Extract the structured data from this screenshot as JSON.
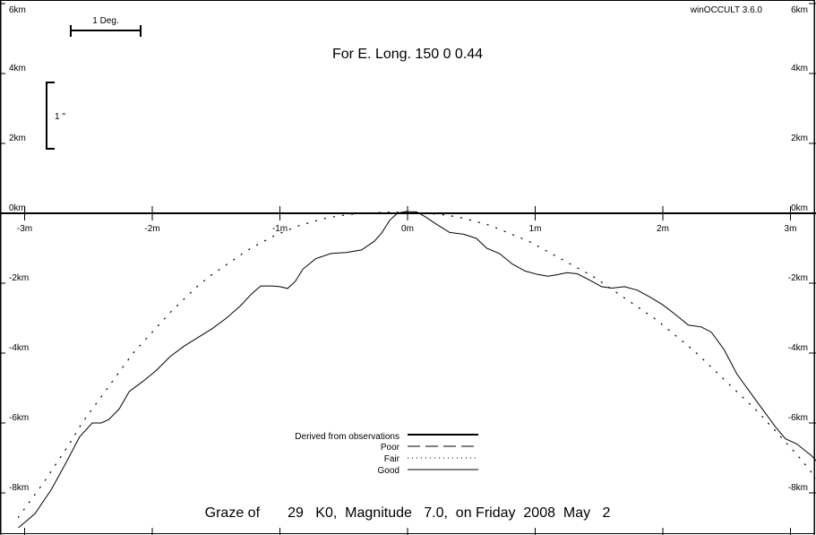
{
  "app_label": "winOCCULT 3.6.0",
  "header": "For E. Long.  150  0  0.44",
  "footer": "Graze of       29   K0,  Magnitude   7.0,  on Friday  2008  May   2",
  "scale_bars": {
    "degree_label": "1 Deg.",
    "arcsec_label": "1 ''"
  },
  "colors": {
    "background": "#ffffff",
    "ink": "#000000"
  },
  "chart_data": {
    "type": "line",
    "title": "",
    "xlabel": "",
    "ylabel": "",
    "xlim": [
      -3.05,
      3.05
    ],
    "ylim": [
      -9,
      6
    ],
    "x_ticks": [
      {
        "value": -3,
        "label": "-3m"
      },
      {
        "value": -2,
        "label": "-2m"
      },
      {
        "value": -1,
        "label": "-1m"
      },
      {
        "value": 0,
        "label": "0m"
      },
      {
        "value": 1,
        "label": "1m"
      },
      {
        "value": 2,
        "label": "2m"
      },
      {
        "value": 3,
        "label": "3m"
      }
    ],
    "y_ticks_left": [
      {
        "value": 6,
        "label": "6km"
      },
      {
        "value": 4,
        "label": "4km"
      },
      {
        "value": 2,
        "label": "2km"
      },
      {
        "value": 0,
        "label": "0km"
      },
      {
        "value": -2,
        "label": "-2km"
      },
      {
        "value": -4,
        "label": "-4km"
      },
      {
        "value": -6,
        "label": "-6km"
      },
      {
        "value": -8,
        "label": "-8km"
      }
    ],
    "y_ticks_right": [
      {
        "value": 6,
        "label": "6km"
      },
      {
        "value": 4,
        "label": "4km"
      },
      {
        "value": 2,
        "label": "2km"
      },
      {
        "value": 0,
        "label": "0km"
      },
      {
        "value": -2,
        "label": "-2km"
      },
      {
        "value": -4,
        "label": "-4km"
      },
      {
        "value": -6,
        "label": "-6km"
      },
      {
        "value": -8,
        "label": "-8km"
      }
    ],
    "legend": {
      "placement": "bottom-center",
      "entries": [
        {
          "label": "Derived from observations",
          "style": "thick"
        },
        {
          "label": "Poor",
          "style": "dashed"
        },
        {
          "label": "Fair",
          "style": "dotted"
        },
        {
          "label": "Good",
          "style": "solid"
        }
      ]
    },
    "series": [
      {
        "style": "solid",
        "points": [
          [
            -3.05,
            -9.0
          ],
          [
            -2.92,
            -8.6
          ],
          [
            -2.79,
            -7.9
          ],
          [
            -2.67,
            -7.1
          ],
          [
            -2.57,
            -6.4
          ],
          [
            -2.47,
            -6.0
          ],
          [
            -2.4,
            -6.0
          ],
          [
            -2.34,
            -5.9
          ],
          [
            -2.26,
            -5.6
          ],
          [
            -2.18,
            -5.1
          ],
          [
            -2.07,
            -4.8
          ],
          [
            -1.97,
            -4.5
          ],
          [
            -1.86,
            -4.1
          ],
          [
            -1.75,
            -3.8
          ],
          [
            -1.64,
            -3.55
          ],
          [
            -1.53,
            -3.3
          ],
          [
            -1.42,
            -3.0
          ],
          [
            -1.31,
            -2.65
          ],
          [
            -1.22,
            -2.3
          ],
          [
            -1.15,
            -2.08
          ],
          [
            -1.06,
            -2.08
          ],
          [
            -1.0,
            -2.1
          ],
          [
            -0.94,
            -2.15
          ],
          [
            -0.88,
            -1.95
          ],
          [
            -0.82,
            -1.6
          ],
          [
            -0.72,
            -1.3
          ],
          [
            -0.6,
            -1.15
          ],
          [
            -0.48,
            -1.12
          ],
          [
            -0.36,
            -1.05
          ],
          [
            -0.26,
            -0.8
          ],
          [
            -0.2,
            -0.55
          ],
          [
            -0.14,
            -0.2
          ],
          [
            -0.08,
            0.0
          ],
          [
            -0.02,
            0.05
          ],
          [
            0.07,
            0.04
          ],
          [
            0.14,
            -0.1
          ],
          [
            0.22,
            -0.3
          ],
          [
            0.33,
            -0.55
          ],
          [
            0.44,
            -0.6
          ],
          [
            0.54,
            -0.72
          ],
          [
            0.62,
            -1.0
          ],
          [
            0.72,
            -1.15
          ],
          [
            0.82,
            -1.45
          ],
          [
            0.92,
            -1.65
          ],
          [
            1.02,
            -1.75
          ],
          [
            1.1,
            -1.8
          ],
          [
            1.17,
            -1.76
          ],
          [
            1.25,
            -1.7
          ],
          [
            1.33,
            -1.73
          ],
          [
            1.42,
            -1.9
          ],
          [
            1.52,
            -2.1
          ],
          [
            1.6,
            -2.14
          ],
          [
            1.7,
            -2.1
          ],
          [
            1.8,
            -2.2
          ],
          [
            1.9,
            -2.4
          ],
          [
            2.0,
            -2.62
          ],
          [
            2.1,
            -2.9
          ],
          [
            2.2,
            -3.2
          ],
          [
            2.3,
            -3.25
          ],
          [
            2.38,
            -3.4
          ],
          [
            2.48,
            -3.9
          ],
          [
            2.58,
            -4.6
          ],
          [
            2.68,
            -5.1
          ],
          [
            2.78,
            -5.6
          ],
          [
            2.88,
            -6.1
          ],
          [
            2.96,
            -6.45
          ],
          [
            3.05,
            -6.6
          ],
          [
            3.17,
            -6.95
          ],
          [
            3.3,
            -7.5
          ],
          [
            3.4,
            -7.85
          ]
        ]
      },
      {
        "style": "dotted",
        "points": [
          [
            -3.05,
            -8.7
          ],
          [
            -2.95,
            -8.2
          ],
          [
            -2.85,
            -7.7
          ],
          [
            -2.75,
            -7.15
          ],
          [
            -2.65,
            -6.6
          ],
          [
            -2.55,
            -6.0
          ],
          [
            -2.45,
            -5.5
          ],
          [
            -2.35,
            -5.0
          ],
          [
            -2.25,
            -4.5
          ],
          [
            -2.15,
            -4.0
          ],
          [
            -2.05,
            -3.6
          ],
          [
            -1.95,
            -3.2
          ],
          [
            -1.85,
            -2.8
          ],
          [
            -1.75,
            -2.45
          ],
          [
            -1.65,
            -2.1
          ],
          [
            -1.55,
            -1.8
          ],
          [
            -1.45,
            -1.55
          ],
          [
            -1.35,
            -1.3
          ],
          [
            -1.25,
            -1.05
          ],
          [
            -1.15,
            -0.85
          ],
          [
            -1.05,
            -0.65
          ],
          [
            -0.95,
            -0.5
          ],
          [
            -0.85,
            -0.35
          ],
          [
            -0.75,
            -0.25
          ],
          [
            -0.65,
            -0.15
          ],
          [
            -0.55,
            -0.08
          ],
          [
            -0.45,
            -0.03
          ],
          [
            -0.35,
            0.0
          ],
          [
            -0.25,
            0.02
          ],
          [
            -0.15,
            0.03
          ],
          [
            -0.05,
            0.03
          ],
          [
            0.05,
            0.02
          ],
          [
            0.15,
            0.0
          ],
          [
            0.25,
            -0.03
          ],
          [
            0.35,
            -0.08
          ],
          [
            0.45,
            -0.15
          ],
          [
            0.55,
            -0.25
          ],
          [
            0.65,
            -0.35
          ],
          [
            0.75,
            -0.5
          ],
          [
            0.85,
            -0.65
          ],
          [
            0.95,
            -0.8
          ],
          [
            1.05,
            -1.0
          ],
          [
            1.15,
            -1.2
          ],
          [
            1.25,
            -1.4
          ],
          [
            1.35,
            -1.6
          ],
          [
            1.45,
            -1.8
          ],
          [
            1.55,
            -2.05
          ],
          [
            1.65,
            -2.3
          ],
          [
            1.75,
            -2.55
          ],
          [
            1.85,
            -2.8
          ],
          [
            1.95,
            -3.05
          ],
          [
            2.05,
            -3.35
          ],
          [
            2.15,
            -3.65
          ],
          [
            2.25,
            -3.95
          ],
          [
            2.35,
            -4.3
          ],
          [
            2.45,
            -4.65
          ],
          [
            2.55,
            -5.0
          ],
          [
            2.65,
            -5.35
          ],
          [
            2.75,
            -5.7
          ],
          [
            2.85,
            -6.1
          ],
          [
            2.95,
            -6.5
          ],
          [
            3.05,
            -6.9
          ],
          [
            3.15,
            -7.35
          ],
          [
            3.25,
            -7.8
          ],
          [
            3.35,
            -8.3
          ]
        ]
      }
    ]
  }
}
